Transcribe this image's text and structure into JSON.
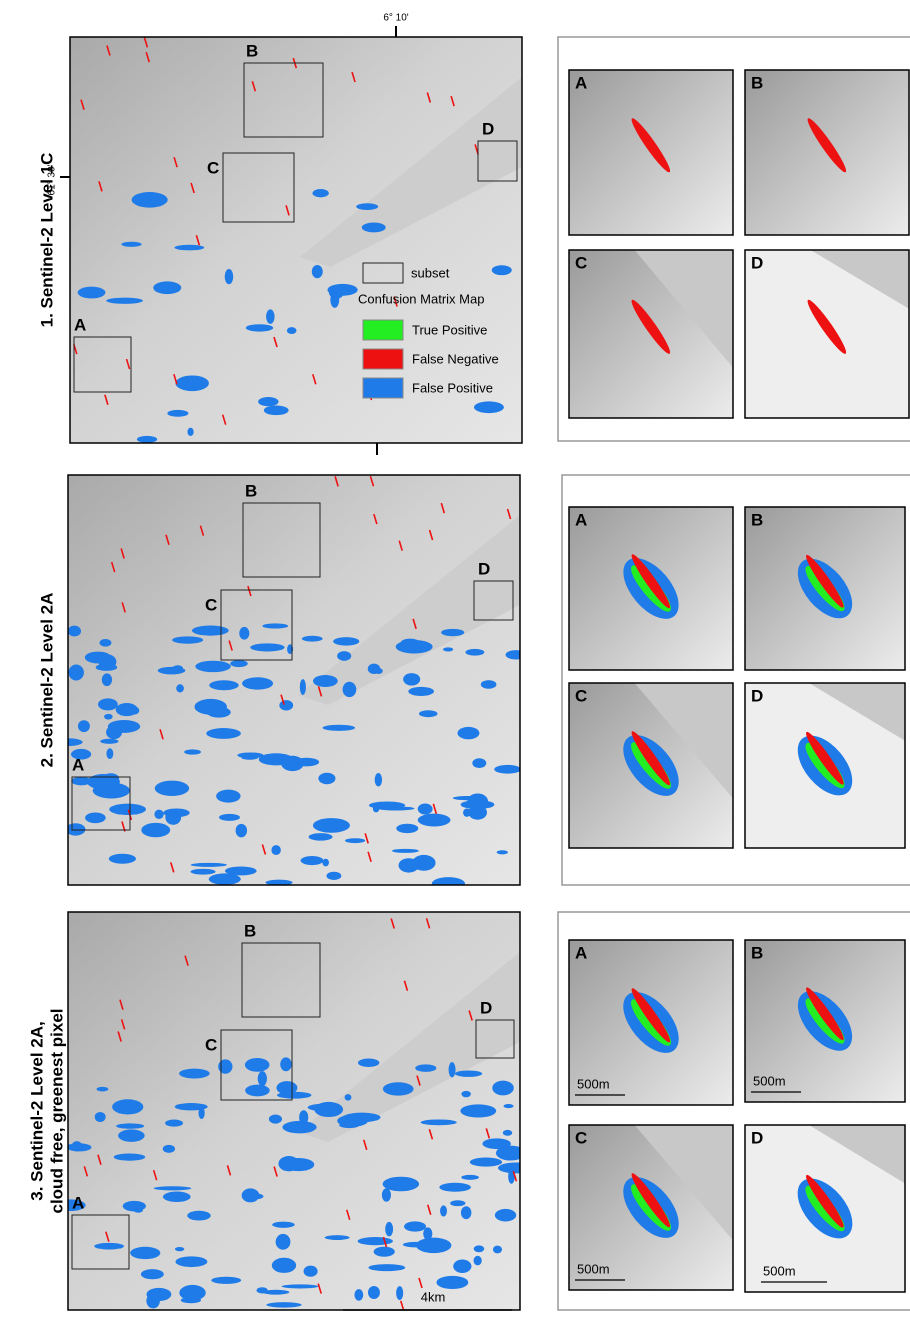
{
  "coordinates": {
    "longitude": "6° 10'",
    "latitude": "61° 30'"
  },
  "legend": {
    "subset": "subset",
    "title": "Confusion Matrix Map",
    "items": [
      {
        "label": "True Positive",
        "color": "#22ee22"
      },
      {
        "label": "False Negative",
        "color": "#ee1111"
      },
      {
        "label": "False Positive",
        "color": "#1e7be8"
      }
    ]
  },
  "scale_bar": "4km",
  "panels": [
    {
      "label": [
        "1. Sentinel-2 Level 1C"
      ],
      "subsets": [
        "A",
        "B",
        "C",
        "D"
      ],
      "insets": [
        {
          "label": "A"
        },
        {
          "label": "B"
        },
        {
          "label": "C"
        },
        {
          "label": "D"
        }
      ]
    },
    {
      "label": [
        "2. Sentinel-2 Level 2A"
      ],
      "subsets": [
        "A",
        "B",
        "C",
        "D"
      ],
      "insets": [
        {
          "label": "A"
        },
        {
          "label": "B"
        },
        {
          "label": "C"
        },
        {
          "label": "D"
        }
      ]
    },
    {
      "label": [
        "3. Sentinel-2 Level 2A,",
        "cloud free, greenest pixel"
      ],
      "subsets": [
        "A",
        "B",
        "C",
        "D"
      ],
      "insets": [
        {
          "label": "A",
          "scale": "500m"
        },
        {
          "label": "B",
          "scale": "500m"
        },
        {
          "label": "C",
          "scale": "500m"
        },
        {
          "label": "D",
          "scale": "500m"
        }
      ]
    }
  ]
}
